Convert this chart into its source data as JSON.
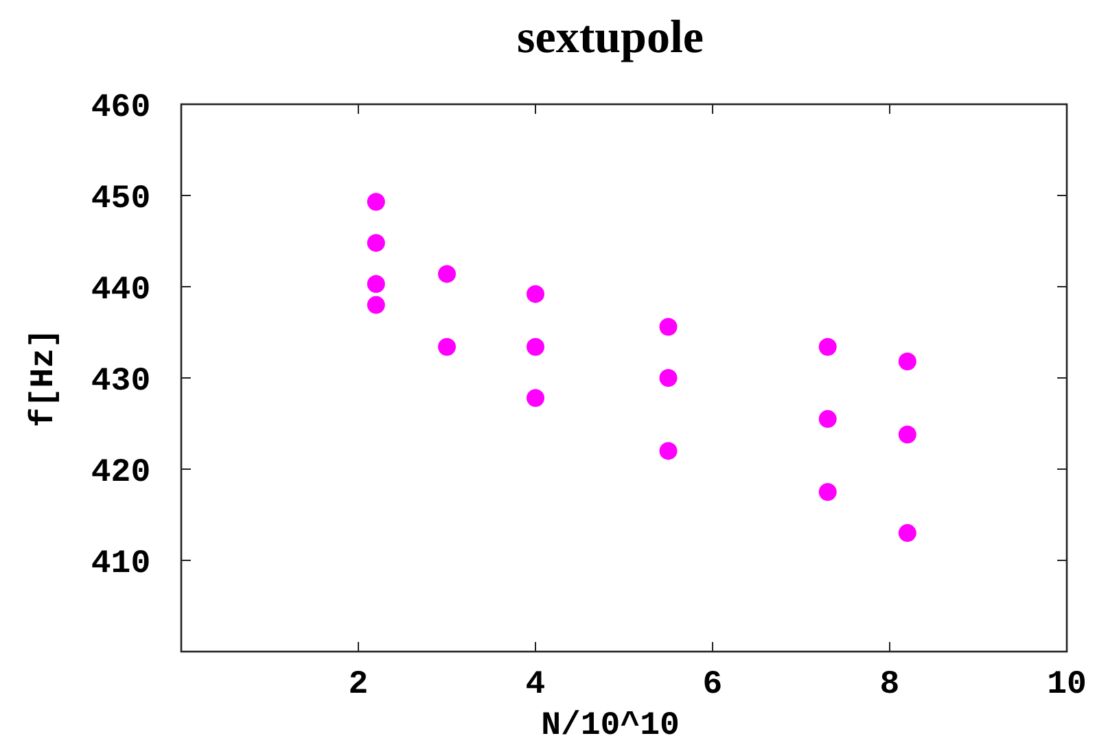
{
  "chart_data": {
    "type": "scatter",
    "title": "sextupole",
    "xlabel": "N/10^10",
    "ylabel": "f[Hz]",
    "xlim": [
      0,
      10
    ],
    "ylim": [
      400,
      460
    ],
    "xticks": [
      2,
      4,
      6,
      8,
      10
    ],
    "yticks": [
      410,
      420,
      430,
      440,
      450,
      460
    ],
    "marker": "circle",
    "series": [
      {
        "color": "#ff00ff",
        "x": [
          2.2,
          2.2,
          2.2,
          2.2,
          3,
          3,
          4,
          4,
          4,
          5.5,
          5.5,
          5.5,
          7.3,
          7.3,
          7.3,
          8.2,
          8.2,
          8.2
        ],
        "values": [
          449.3,
          444.8,
          440.3,
          438,
          441.4,
          433.4,
          439.2,
          433.4,
          427.8,
          435.6,
          430,
          422,
          433.4,
          425.5,
          417.5,
          431.8,
          423.8,
          413
        ]
      }
    ]
  }
}
